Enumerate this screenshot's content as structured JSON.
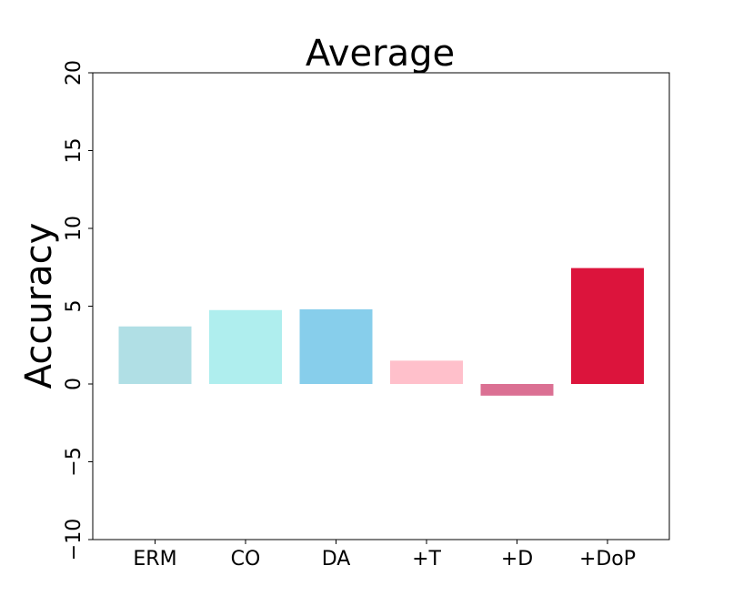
{
  "chart_data": {
    "type": "bar",
    "title": "Average",
    "xlabel": "",
    "ylabel": "Accuracy",
    "categories": [
      "ERM",
      "CO",
      "DA",
      "+T",
      "+D",
      "+DoP"
    ],
    "values": [
      3.7,
      4.75,
      4.8,
      1.5,
      -0.75,
      7.45
    ],
    "colors": [
      "#b0dfe5",
      "#afeeee",
      "#87ceeb",
      "#ffc0cb",
      "#db7093",
      "#dc143c"
    ],
    "ylim": [
      -10,
      20
    ],
    "yticks": [
      -10,
      -5,
      0,
      5,
      10,
      15,
      20
    ],
    "ytick_labels": [
      "−10",
      "−5",
      "0",
      "5",
      "10",
      "15",
      "20"
    ],
    "grid": false,
    "legend": "none"
  }
}
